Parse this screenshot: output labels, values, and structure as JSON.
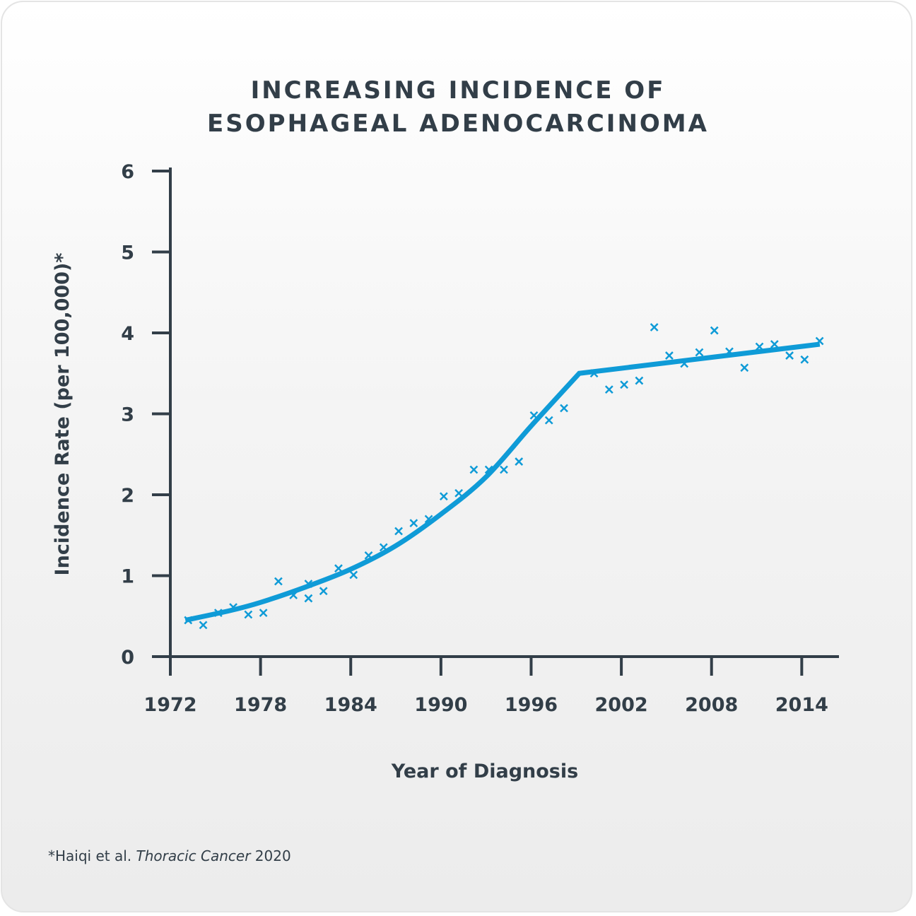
{
  "chart_data": {
    "type": "scatter",
    "title_lines": [
      "INCREASING INCIDENCE OF",
      "ESOPHAGEAL ADENOCARCINOMA"
    ],
    "xlabel": "Year of Diagnosis",
    "ylabel": "Incidence Rate (per 100,000)*",
    "xlim": [
      1972,
      2016.5
    ],
    "ylim": [
      0,
      6
    ],
    "x_ticks": [
      1972,
      1978,
      1984,
      1990,
      1996,
      2002,
      2008,
      2014
    ],
    "x_tick_labels": [
      "1972",
      "1978",
      "1984",
      "1990",
      "1996",
      "2002",
      "2008",
      "2014"
    ],
    "y_ticks": [
      0,
      1,
      2,
      3,
      4,
      5,
      6
    ],
    "y_tick_labels": [
      "0",
      "1",
      "2",
      "3",
      "4",
      "5",
      "6"
    ],
    "grid": false,
    "marker": "x",
    "colors": {
      "series": "#0f9bd7",
      "axis": "#323e48",
      "text": "#323e48"
    },
    "points": [
      {
        "x": 1973,
        "y": 0.45
      },
      {
        "x": 1974,
        "y": 0.39
      },
      {
        "x": 1975,
        "y": 0.54
      },
      {
        "x": 1976,
        "y": 0.61
      },
      {
        "x": 1977,
        "y": 0.52
      },
      {
        "x": 1978,
        "y": 0.54
      },
      {
        "x": 1979,
        "y": 0.93
      },
      {
        "x": 1980,
        "y": 0.76
      },
      {
        "x": 1981,
        "y": 0.9
      },
      {
        "x": 1981,
        "y": 0.72
      },
      {
        "x": 1982,
        "y": 0.81
      },
      {
        "x": 1983,
        "y": 1.09
      },
      {
        "x": 1984,
        "y": 1.01
      },
      {
        "x": 1985,
        "y": 1.25
      },
      {
        "x": 1986,
        "y": 1.35
      },
      {
        "x": 1987,
        "y": 1.55
      },
      {
        "x": 1988,
        "y": 1.65
      },
      {
        "x": 1989,
        "y": 1.7
      },
      {
        "x": 1990,
        "y": 1.98
      },
      {
        "x": 1991,
        "y": 2.02
      },
      {
        "x": 1992,
        "y": 2.31
      },
      {
        "x": 1993,
        "y": 2.31
      },
      {
        "x": 1994,
        "y": 2.31
      },
      {
        "x": 1995,
        "y": 2.41
      },
      {
        "x": 1996,
        "y": 2.98
      },
      {
        "x": 1997,
        "y": 2.92
      },
      {
        "x": 1998,
        "y": 3.07
      },
      {
        "x": 2000,
        "y": 3.5
      },
      {
        "x": 2001,
        "y": 3.3
      },
      {
        "x": 2002,
        "y": 3.36
      },
      {
        "x": 2003,
        "y": 3.41
      },
      {
        "x": 2004,
        "y": 4.07
      },
      {
        "x": 2005,
        "y": 3.72
      },
      {
        "x": 2006,
        "y": 3.62
      },
      {
        "x": 2007,
        "y": 3.76
      },
      {
        "x": 2008,
        "y": 4.03
      },
      {
        "x": 2009,
        "y": 3.77
      },
      {
        "x": 2010,
        "y": 3.57
      },
      {
        "x": 2011,
        "y": 3.83
      },
      {
        "x": 2012,
        "y": 3.86
      },
      {
        "x": 2013,
        "y": 3.72
      },
      {
        "x": 2014,
        "y": 3.67
      },
      {
        "x": 2015,
        "y": 3.9
      }
    ],
    "fit_line": [
      {
        "x": 1973,
        "y": 0.45
      },
      {
        "x": 1976,
        "y": 0.57
      },
      {
        "x": 1978,
        "y": 0.67
      },
      {
        "x": 1981,
        "y": 0.86
      },
      {
        "x": 1984,
        "y": 1.08
      },
      {
        "x": 1987,
        "y": 1.37
      },
      {
        "x": 1990,
        "y": 1.76
      },
      {
        "x": 1993,
        "y": 2.22
      },
      {
        "x": 1996,
        "y": 2.85
      },
      {
        "x": 1999.2,
        "y": 3.5
      },
      {
        "x": 2015.2,
        "y": 3.86
      }
    ]
  },
  "footnote": {
    "prefix": "*Haiqi et al. ",
    "journal": "Thoracic Cancer",
    "suffix": " 2020"
  }
}
